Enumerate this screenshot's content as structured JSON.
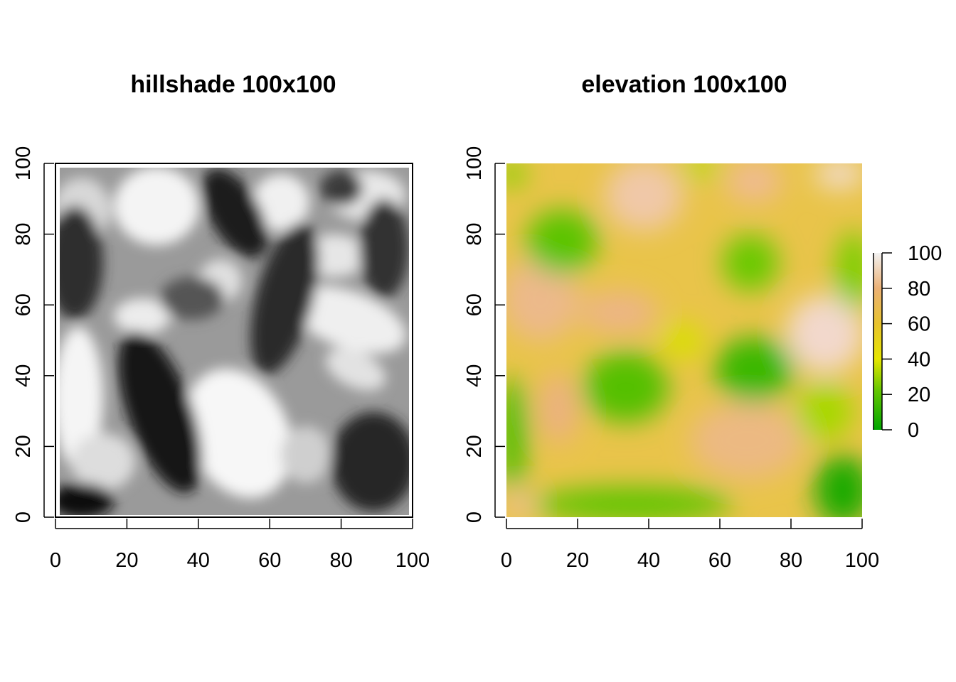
{
  "chart_data": [
    {
      "type": "heatmap",
      "title": "hillshade 100x100",
      "xlabel": "",
      "ylabel": "",
      "xlim": [
        0,
        100
      ],
      "ylim": [
        0,
        100
      ],
      "xticks": [
        0,
        20,
        40,
        60,
        80,
        100
      ],
      "yticks": [
        0,
        20,
        40,
        60,
        80,
        100
      ],
      "grid": false,
      "palette": "grayscale",
      "colors": {
        "dark": "#000000",
        "light": "#ffffff"
      },
      "legend": null
    },
    {
      "type": "heatmap",
      "title": "elevation 100x100",
      "xlabel": "",
      "ylabel": "",
      "xlim": [
        0,
        100
      ],
      "ylim": [
        0,
        100
      ],
      "xticks": [
        0,
        20,
        40,
        60,
        80,
        100
      ],
      "yticks": [
        0,
        20,
        40,
        60,
        80,
        100
      ],
      "grid": false,
      "palette": "terrain",
      "colors": {
        "low": "#00a600",
        "mid": "#e6e600",
        "high_mid": "#ecb176",
        "high": "#f2f2f2"
      },
      "legend": {
        "placement": "right",
        "ticks": [
          0,
          20,
          40,
          60,
          80,
          100
        ],
        "range": [
          0,
          100
        ]
      }
    }
  ]
}
